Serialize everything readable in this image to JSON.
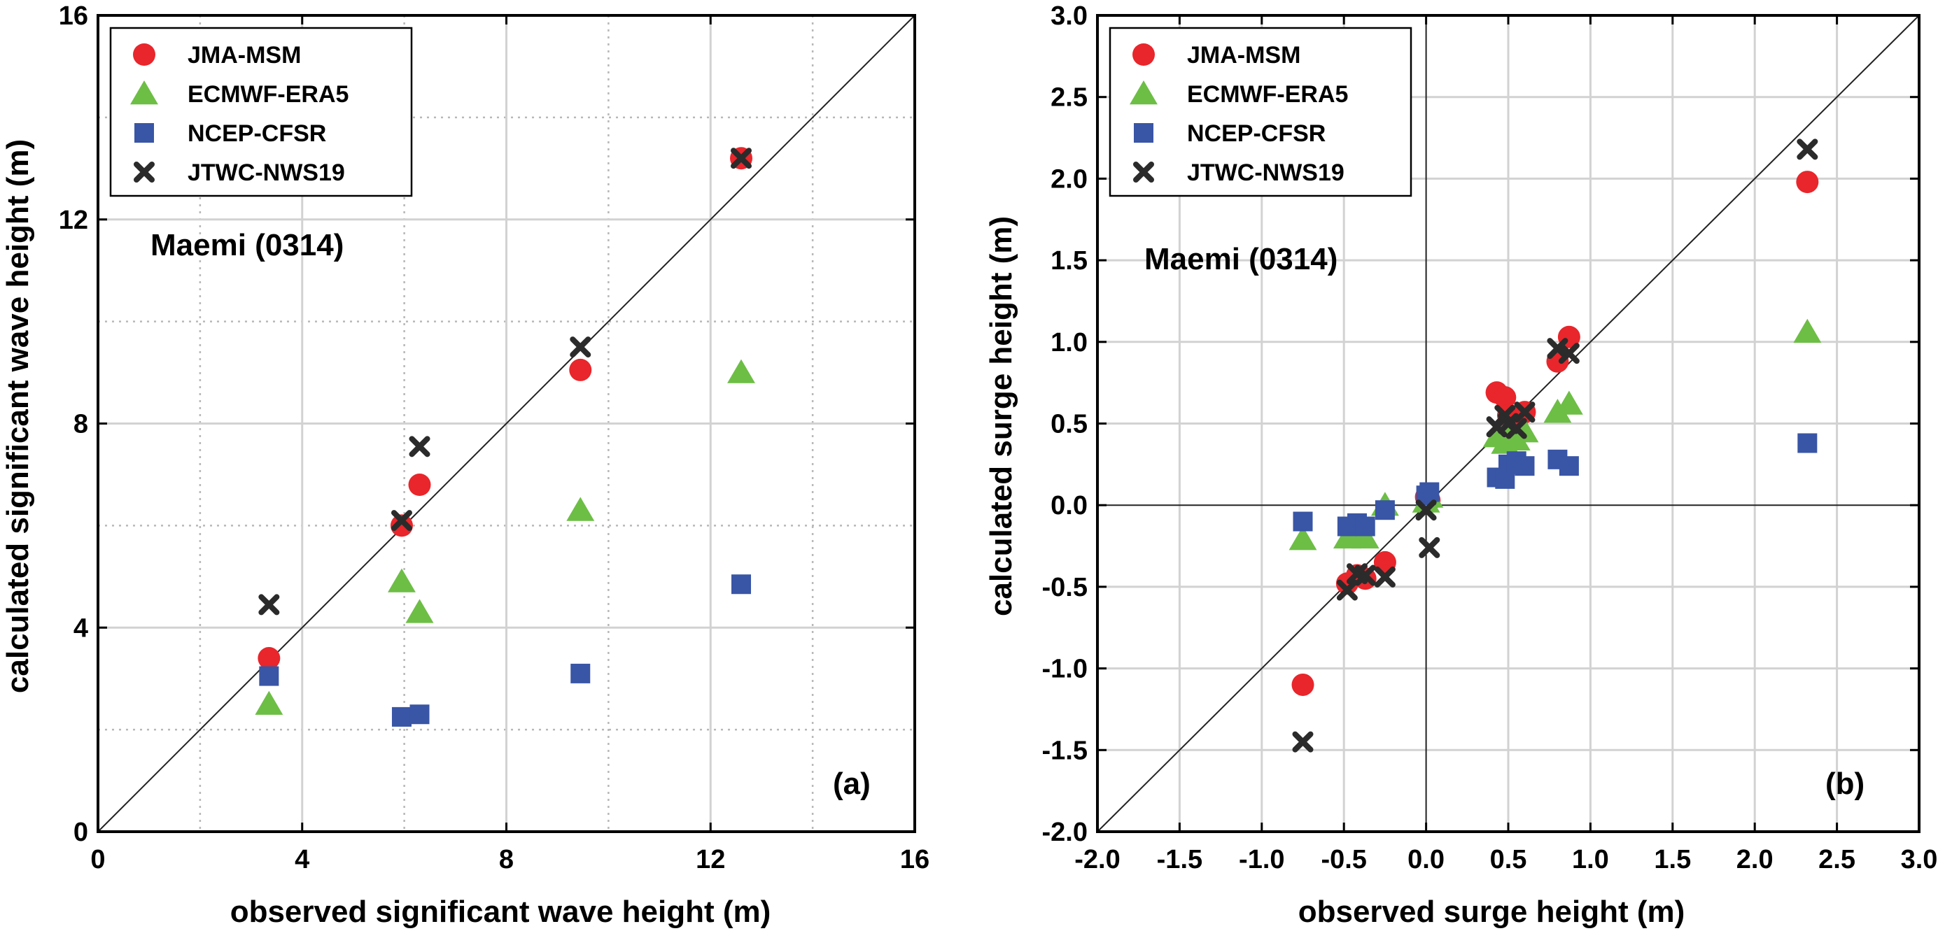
{
  "chart_data": [
    {
      "type": "scatter",
      "title": "",
      "panel_label": "(a)",
      "annotation": "Maemi (0314)",
      "xlabel": "observed significant wave height (m)",
      "ylabel": "calculated significant wave height (m)",
      "xlim": [
        0,
        16
      ],
      "ylim": [
        0,
        16
      ],
      "xticks": [
        0,
        4,
        8,
        12,
        16
      ],
      "yticks": [
        0,
        4,
        8,
        12,
        16
      ],
      "xtick_labels": [
        "0",
        "4",
        "8",
        "12",
        "16"
      ],
      "ytick_labels": [
        "0",
        "4",
        "8",
        "12",
        "16"
      ],
      "grid_major": [
        4,
        8,
        12
      ],
      "grid_minor": [
        2,
        6,
        10,
        14
      ],
      "diagonal": true,
      "zero_lines": false,
      "legend_position": "top-left",
      "series": [
        {
          "name": "JMA-MSM",
          "marker": "circle",
          "color": "#e8262b",
          "points": [
            [
              3.35,
              3.4
            ],
            [
              5.95,
              6.0
            ],
            [
              6.3,
              6.8
            ],
            [
              9.45,
              9.05
            ],
            [
              12.6,
              13.2
            ]
          ]
        },
        {
          "name": "ECMWF-ERA5",
          "marker": "triangle",
          "color": "#6dbe45",
          "points": [
            [
              3.35,
              2.5
            ],
            [
              5.95,
              4.9
            ],
            [
              6.3,
              4.3
            ],
            [
              9.45,
              6.3
            ],
            [
              12.6,
              9.0
            ]
          ]
        },
        {
          "name": "NCEP-CFSR",
          "marker": "square",
          "color": "#3955a5",
          "points": [
            [
              3.35,
              3.05
            ],
            [
              5.95,
              2.25
            ],
            [
              6.3,
              2.3
            ],
            [
              9.45,
              3.1
            ],
            [
              12.6,
              4.85
            ]
          ]
        },
        {
          "name": "JTWC-NWS19",
          "marker": "x",
          "color": "#2b2b2b",
          "points": [
            [
              3.35,
              4.45
            ],
            [
              5.95,
              6.1
            ],
            [
              6.3,
              7.55
            ],
            [
              9.45,
              9.5
            ],
            [
              12.6,
              13.2
            ]
          ]
        }
      ]
    },
    {
      "type": "scatter",
      "title": "",
      "panel_label": "(b)",
      "annotation": "Maemi (0314)",
      "xlabel": "observed surge height (m)",
      "ylabel": "calculated surge height (m)",
      "xlim": [
        -2,
        3
      ],
      "ylim": [
        -2,
        3
      ],
      "xticks": [
        -2,
        -1.5,
        -1,
        -0.5,
        0,
        0.5,
        1,
        1.5,
        2,
        2.5,
        3
      ],
      "yticks": [
        -2,
        -1.5,
        -1,
        -0.5,
        0,
        0.5,
        1,
        1.5,
        2,
        2.5,
        3
      ],
      "xtick_labels": [
        "-2.0",
        "-1.5",
        "-1.0",
        "-0.5",
        "0.0",
        "0.5",
        "1.0",
        "1.5",
        "2.0",
        "2.5",
        "3.0"
      ],
      "ytick_labels": [
        "-2.0",
        "-1.5",
        "-1.0",
        "-0.5",
        "0.0",
        "0.5",
        "1.0",
        "1.5",
        "2.0",
        "2.5",
        "3.0"
      ],
      "grid_major": [
        -1.5,
        -1,
        -0.5,
        0.5,
        1,
        1.5,
        2,
        2.5
      ],
      "grid_minor": [],
      "diagonal": true,
      "zero_lines": true,
      "legend_position": "top-left",
      "series": [
        {
          "name": "JMA-MSM",
          "marker": "circle",
          "color": "#e8262b",
          "points": [
            [
              -0.75,
              -1.1
            ],
            [
              -0.48,
              -0.48
            ],
            [
              -0.42,
              -0.43
            ],
            [
              -0.37,
              -0.45
            ],
            [
              -0.25,
              -0.35
            ],
            [
              0.0,
              0.05
            ],
            [
              0.02,
              0.03
            ],
            [
              0.43,
              0.69
            ],
            [
              0.48,
              0.66
            ],
            [
              0.5,
              0.55
            ],
            [
              0.55,
              0.5
            ],
            [
              0.6,
              0.57
            ],
            [
              0.8,
              0.88
            ],
            [
              0.87,
              1.03
            ],
            [
              2.32,
              1.98
            ]
          ]
        },
        {
          "name": "ECMWF-ERA5",
          "marker": "triangle",
          "color": "#6dbe45",
          "points": [
            [
              -0.75,
              -0.21
            ],
            [
              -0.48,
              -0.2
            ],
            [
              -0.42,
              -0.19
            ],
            [
              -0.37,
              -0.2
            ],
            [
              -0.25,
              0.0
            ],
            [
              0.0,
              0.02
            ],
            [
              0.02,
              0.05
            ],
            [
              0.43,
              0.42
            ],
            [
              0.48,
              0.38
            ],
            [
              0.5,
              0.45
            ],
            [
              0.55,
              0.4
            ],
            [
              0.6,
              0.45
            ],
            [
              0.8,
              0.57
            ],
            [
              0.87,
              0.62
            ],
            [
              2.32,
              1.06
            ]
          ]
        },
        {
          "name": "NCEP-CFSR",
          "marker": "square",
          "color": "#3955a5",
          "points": [
            [
              -0.75,
              -0.1
            ],
            [
              -0.48,
              -0.13
            ],
            [
              -0.42,
              -0.11
            ],
            [
              -0.37,
              -0.13
            ],
            [
              -0.25,
              -0.03
            ],
            [
              0.0,
              0.06
            ],
            [
              0.02,
              0.08
            ],
            [
              0.43,
              0.17
            ],
            [
              0.48,
              0.16
            ],
            [
              0.5,
              0.25
            ],
            [
              0.55,
              0.27
            ],
            [
              0.6,
              0.24
            ],
            [
              0.8,
              0.28
            ],
            [
              0.87,
              0.24
            ],
            [
              2.32,
              0.38
            ]
          ]
        },
        {
          "name": "JTWC-NWS19",
          "marker": "x",
          "color": "#2b2b2b",
          "points": [
            [
              -0.75,
              -1.45
            ],
            [
              -0.48,
              -0.52
            ],
            [
              -0.42,
              -0.42
            ],
            [
              -0.37,
              -0.43
            ],
            [
              -0.25,
              -0.44
            ],
            [
              0.0,
              -0.03
            ],
            [
              0.02,
              -0.26
            ],
            [
              0.43,
              0.48
            ],
            [
              0.48,
              0.55
            ],
            [
              0.5,
              0.5
            ],
            [
              0.55,
              0.47
            ],
            [
              0.6,
              0.57
            ],
            [
              0.8,
              0.96
            ],
            [
              0.87,
              0.93
            ],
            [
              2.32,
              2.18
            ]
          ]
        }
      ]
    }
  ]
}
